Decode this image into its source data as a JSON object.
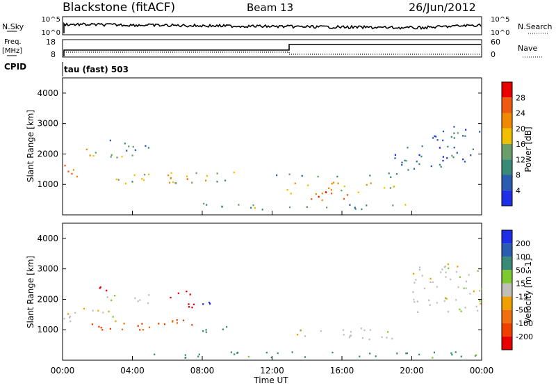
{
  "header": {
    "station": "Blackstone (fitACF)",
    "beam": "Beam 13",
    "date": "26/Jun/2012"
  },
  "noise_panel": {
    "left_label": "N.Sky",
    "right_label": "N.Search",
    "ticks_left": [
      "10^5",
      "10^0"
    ],
    "ticks_right": [
      "10^5",
      "10^0"
    ]
  },
  "freq_panel": {
    "left_label_line1": "Freq.",
    "left_label_line2": "[MHz]",
    "ticks_left": [
      "18",
      "8"
    ],
    "right_label": "Nave",
    "ticks_right": [
      "60",
      "0"
    ]
  },
  "cpid": {
    "label": "CPID",
    "value": "tau (fast) 503"
  },
  "colors": {
    "power_scale": [
      "#1f2fe8",
      "#2a5db0",
      "#3a8a78",
      "#6a9e6a",
      "#f0c000",
      "#f08a00",
      "#f05a10",
      "#e80000"
    ],
    "velocity_scale": [
      "#1f2fe8",
      "#2a5db0",
      "#3a8a78",
      "#7ec830",
      "#c0c0b8",
      "#f0a000",
      "#f07010",
      "#f04000",
      "#e80000"
    ]
  },
  "chart_data": [
    {
      "type": "heatmap",
      "title": "Power",
      "xlabel": "Time UT",
      "ylabel": "Slant Range [km]",
      "x_ticks": [
        "00:00",
        "04:00",
        "08:00",
        "12:00",
        "16:00",
        "20:00",
        "00:00"
      ],
      "xlim": [
        0,
        24
      ],
      "ylim": [
        0,
        4500
      ],
      "y_ticks": [
        1000,
        2000,
        3000,
        4000
      ],
      "colorbar": {
        "label": "Power [dB]",
        "ticks": [
          4,
          8,
          12,
          16,
          20,
          24,
          28
        ],
        "range": [
          0,
          32
        ]
      },
      "features": [
        {
          "t0": 0.0,
          "t1": 1.2,
          "r0": 1250,
          "r1": 1700,
          "level": 24
        },
        {
          "t0": 1.2,
          "t1": 4.0,
          "r0": 1800,
          "r1": 2200,
          "level": 18
        },
        {
          "t0": 2.5,
          "t1": 5.0,
          "r0": 2100,
          "r1": 2500,
          "level": 10
        },
        {
          "t0": 3.0,
          "t1": 10.0,
          "r0": 1050,
          "r1": 1450,
          "level": 16
        },
        {
          "t0": 6.0,
          "t1": 7.5,
          "r0": 1100,
          "r1": 1400,
          "level": 22
        },
        {
          "t0": 12.5,
          "t1": 19.0,
          "r0": 700,
          "r1": 1100,
          "level": 20
        },
        {
          "t0": 14.0,
          "t1": 16.5,
          "r0": 500,
          "r1": 800,
          "level": 28
        },
        {
          "t0": 12.0,
          "t1": 19.5,
          "r0": 1250,
          "r1": 1400,
          "level": 10
        },
        {
          "t0": 19.0,
          "t1": 23.5,
          "r0": 1500,
          "r1": 2300,
          "level": 8
        },
        {
          "t0": 21.0,
          "t1": 24.0,
          "r0": 2400,
          "r1": 3000,
          "level": 8
        },
        {
          "t0": 8.0,
          "t1": 20.0,
          "r0": 200,
          "r1": 400,
          "level": 12
        }
      ]
    },
    {
      "type": "heatmap",
      "title": "Velocity",
      "xlabel": "Time UT",
      "ylabel": "Slant Range [km]",
      "x_ticks": [
        "00:00",
        "04:00",
        "08:00",
        "12:00",
        "16:00",
        "20:00",
        "00:00"
      ],
      "xlim": [
        0,
        24
      ],
      "ylim": [
        0,
        4500
      ],
      "y_ticks": [
        1000,
        2000,
        3000,
        4000
      ],
      "colorbar": {
        "label": "Velocity [m s-1]",
        "ticks": [
          "200",
          "100",
          "50",
          "15",
          "-15",
          "-50",
          "-100",
          "-200"
        ]
      },
      "features": [
        {
          "t0": 0.0,
          "t1": 3.0,
          "r0": 1300,
          "r1": 1800,
          "velocity": 0
        },
        {
          "t0": 2.0,
          "t1": 5.0,
          "r0": 1900,
          "r1": 2200,
          "velocity": 0
        },
        {
          "t0": 1.0,
          "t1": 8.0,
          "r0": 1000,
          "r1": 1350,
          "velocity": -75
        },
        {
          "t0": 6.0,
          "t1": 7.5,
          "r0": 1700,
          "r1": 2300,
          "velocity": -200
        },
        {
          "t0": 2.0,
          "t1": 3.0,
          "r0": 2100,
          "r1": 2500,
          "velocity": -200
        },
        {
          "t0": 8.0,
          "t1": 9.5,
          "r0": 900,
          "r1": 1300,
          "velocity": 50
        },
        {
          "t0": 8.0,
          "t1": 9.0,
          "r0": 1800,
          "r1": 2100,
          "velocity": 150
        },
        {
          "t0": 13.0,
          "t1": 19.0,
          "r0": 700,
          "r1": 1100,
          "velocity": 0
        },
        {
          "t0": 20.0,
          "t1": 24.0,
          "r0": 1600,
          "r1": 3200,
          "velocity": 0
        },
        {
          "t0": 5.0,
          "t1": 24.0,
          "r0": 100,
          "r1": 300,
          "velocity": 50
        }
      ]
    }
  ]
}
